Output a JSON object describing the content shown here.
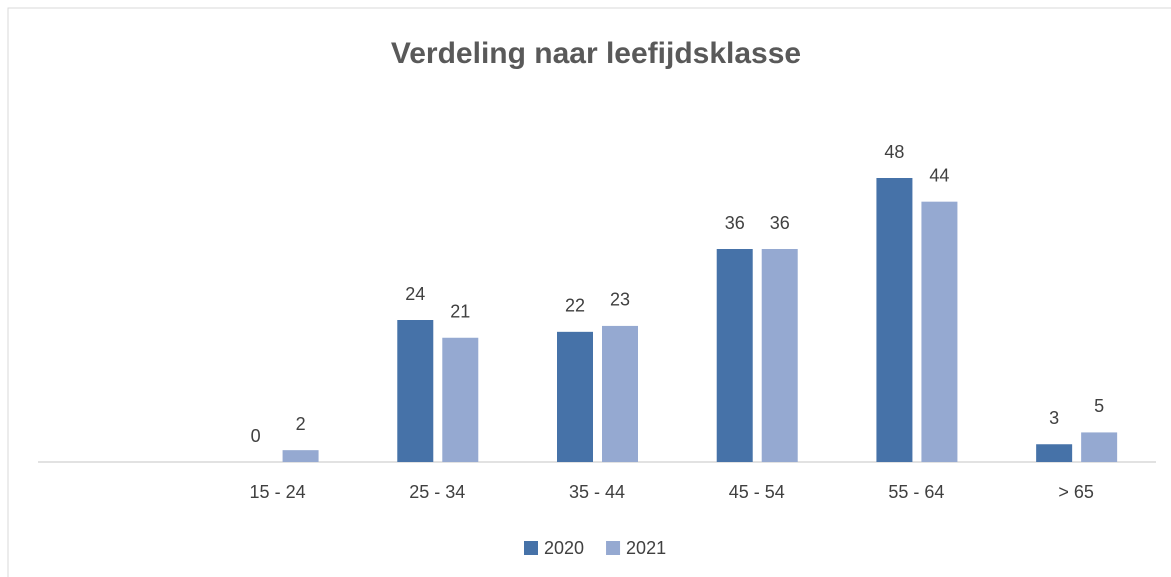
{
  "chart_data": {
    "type": "bar",
    "title": "Verdeling naar leefijdsklasse",
    "categories": [
      null,
      "15 - 24",
      "25 - 34",
      "35 - 44",
      "45 - 54",
      "55 - 64",
      "> 65"
    ],
    "series": [
      {
        "name": "2020",
        "color": "#4672a8",
        "values": [
          null,
          0,
          24,
          22,
          36,
          48,
          3
        ]
      },
      {
        "name": "2021",
        "color": "#95a9d1",
        "values": [
          null,
          2,
          21,
          23,
          36,
          44,
          5
        ]
      }
    ],
    "legend": "bottom"
  }
}
